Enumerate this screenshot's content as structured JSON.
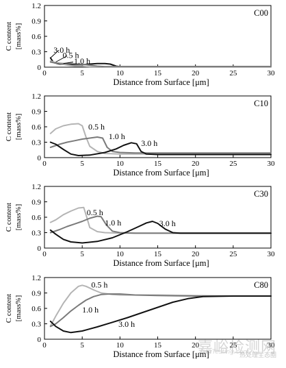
{
  "watermark": {
    "main": "嘉峪检测网",
    "url": "AnyTesting.com",
    "sub": "热处理生态圈"
  },
  "chart_data": [
    {
      "type": "line",
      "panel_label": "C00",
      "xlabel": "Distance from Surface [μm]",
      "ylabel": "C content [mass%]",
      "xlim": [
        0,
        30
      ],
      "ylim": [
        0,
        1.2
      ],
      "xticks": [
        0,
        5,
        10,
        15,
        20,
        25,
        30
      ],
      "yticks": [
        0,
        0.3,
        0.6,
        0.9,
        1.2
      ],
      "yticklabels": [
        "0",
        "0.3",
        "0.6",
        "0.9",
        "1.2"
      ],
      "series": [
        {
          "name": "3.0 h",
          "color": "#111111",
          "x": [
            0.8,
            1.2,
            2,
            3,
            4,
            5,
            6,
            7,
            8,
            8.7,
            9.5,
            10,
            12,
            15,
            20,
            25,
            30
          ],
          "y": [
            0.18,
            0.09,
            0.06,
            0.05,
            0.05,
            0.05,
            0.06,
            0.07,
            0.07,
            0.06,
            0.02,
            0.01,
            0.01,
            0.01,
            0.01,
            0.01,
            0.01
          ]
        },
        {
          "name": "0.5 h",
          "color": "#b4b4b4",
          "x": [
            0.8,
            1.2,
            2,
            3,
            4,
            5,
            6,
            8,
            10,
            15,
            20,
            25,
            30
          ],
          "y": [
            0.12,
            0.1,
            0.07,
            0.04,
            0.02,
            0.02,
            0.01,
            0.01,
            0.01,
            0.01,
            0.01,
            0.01,
            0.01
          ]
        },
        {
          "name": "1.0 h",
          "color": "#7a7a7a",
          "x": [
            0.8,
            1.5,
            2.5,
            3.5,
            4.5,
            5.5,
            6.5,
            7,
            8,
            10,
            15,
            20,
            25,
            30
          ],
          "y": [
            0.1,
            0.08,
            0.07,
            0.07,
            0.06,
            0.05,
            0.03,
            0.02,
            0.01,
            0.01,
            0.01,
            0.01,
            0.01,
            0.01
          ]
        }
      ]
    },
    {
      "type": "line",
      "panel_label": "C10",
      "xlabel": "Distance from Surface [μm]",
      "ylabel": "C content [mass%]",
      "xlim": [
        0,
        30
      ],
      "ylim": [
        0,
        1.2
      ],
      "xticks": [
        0,
        5,
        10,
        15,
        20,
        25,
        30
      ],
      "yticks": [
        0,
        0.3,
        0.6,
        0.9,
        1.2
      ],
      "yticklabels": [
        "0",
        "0.3",
        "0.6",
        "0.9",
        "1.2"
      ],
      "series": [
        {
          "name": "0.5 h",
          "color": "#b4b4b4",
          "x": [
            0.8,
            1.5,
            2.5,
            3.5,
            4.5,
            5,
            5.5,
            6,
            7,
            8,
            10,
            15,
            20,
            25,
            30
          ],
          "y": [
            0.47,
            0.56,
            0.62,
            0.65,
            0.66,
            0.62,
            0.4,
            0.22,
            0.12,
            0.08,
            0.07,
            0.07,
            0.07,
            0.07,
            0.07
          ]
        },
        {
          "name": "1.0 h",
          "color": "#7a7a7a",
          "x": [
            0.8,
            2,
            3,
            4,
            5,
            6,
            7,
            7.7,
            8.3,
            9,
            10,
            12,
            15,
            20,
            25,
            30
          ],
          "y": [
            0.2,
            0.26,
            0.3,
            0.33,
            0.36,
            0.38,
            0.4,
            0.38,
            0.2,
            0.12,
            0.1,
            0.09,
            0.09,
            0.09,
            0.09,
            0.09
          ]
        },
        {
          "name": "3.0 h",
          "color": "#111111",
          "x": [
            0.8,
            1.5,
            2.5,
            3.5,
            4.5,
            6,
            8,
            9.5,
            10.5,
            11.5,
            12.2,
            12.8,
            13.5,
            15,
            20,
            25,
            30
          ],
          "y": [
            0.3,
            0.26,
            0.16,
            0.07,
            0.04,
            0.05,
            0.1,
            0.17,
            0.24,
            0.29,
            0.27,
            0.12,
            0.07,
            0.06,
            0.06,
            0.06,
            0.06
          ]
        }
      ]
    },
    {
      "type": "line",
      "panel_label": "C30",
      "xlabel": "Distance from Surface [μm]",
      "ylabel": "C content [mass%]",
      "xlim": [
        0,
        30
      ],
      "ylim": [
        0,
        1.2
      ],
      "xticks": [
        0,
        5,
        10,
        15,
        20,
        25,
        30
      ],
      "yticks": [
        0,
        0.3,
        0.6,
        0.9,
        1.2
      ],
      "yticklabels": [
        "0",
        "0.3",
        "0.6",
        "0.9",
        "1.2"
      ],
      "series": [
        {
          "name": "0.5 h",
          "color": "#b4b4b4",
          "x": [
            0.8,
            1.5,
            2.5,
            3.5,
            4.5,
            5.2,
            5.6,
            6,
            7,
            8,
            10,
            15,
            20,
            25,
            30
          ],
          "y": [
            0.5,
            0.55,
            0.65,
            0.72,
            0.78,
            0.79,
            0.6,
            0.4,
            0.32,
            0.3,
            0.29,
            0.29,
            0.29,
            0.29,
            0.29
          ]
        },
        {
          "name": "1.0 h",
          "color": "#7a7a7a",
          "x": [
            0.8,
            2,
            3,
            4,
            5,
            6,
            7,
            7.5,
            8.2,
            9,
            10,
            12,
            15,
            20,
            25,
            30
          ],
          "y": [
            0.3,
            0.36,
            0.42,
            0.47,
            0.52,
            0.58,
            0.62,
            0.61,
            0.45,
            0.33,
            0.3,
            0.29,
            0.29,
            0.29,
            0.29,
            0.29
          ]
        },
        {
          "name": "3.0 h",
          "color": "#111111",
          "x": [
            0.8,
            1.5,
            2.5,
            3.5,
            5,
            7,
            9,
            11,
            12.5,
            13.5,
            14.3,
            15,
            16,
            17,
            18,
            20,
            25,
            30
          ],
          "y": [
            0.35,
            0.27,
            0.17,
            0.12,
            0.1,
            0.13,
            0.2,
            0.32,
            0.42,
            0.49,
            0.52,
            0.48,
            0.37,
            0.3,
            0.29,
            0.29,
            0.29,
            0.29
          ]
        }
      ]
    },
    {
      "type": "line",
      "panel_label": "C80",
      "xlabel": "Distance from Surface [μm]",
      "ylabel": "C content [mass%]",
      "xlim": [
        0,
        30
      ],
      "ylim": [
        0,
        1.2
      ],
      "xticks": [
        0,
        5,
        10,
        15,
        20,
        25,
        30
      ],
      "yticks": [
        0,
        0.3,
        0.6,
        0.9,
        1.2
      ],
      "yticklabels": [
        "0",
        "0.3",
        "0.6",
        "0.9",
        "1.2"
      ],
      "series": [
        {
          "name": "0.5 h",
          "color": "#b4b4b4",
          "x": [
            0.8,
            1.5,
            2.5,
            3.5,
            4.5,
            5,
            5.5,
            6.5,
            7.5,
            9,
            10,
            12,
            15,
            20,
            25,
            30
          ],
          "y": [
            0.26,
            0.45,
            0.7,
            0.9,
            1.03,
            1.05,
            1.03,
            0.96,
            0.9,
            0.87,
            0.86,
            0.86,
            0.86,
            0.85,
            0.84,
            0.84
          ]
        },
        {
          "name": "1.0 h",
          "color": "#7a7a7a",
          "x": [
            0.8,
            1.5,
            2.5,
            3.5,
            4.5,
            5.5,
            6.5,
            7.5,
            8.5,
            10,
            12,
            15,
            20,
            25,
            30
          ],
          "y": [
            0.25,
            0.3,
            0.42,
            0.55,
            0.66,
            0.76,
            0.83,
            0.87,
            0.88,
            0.88,
            0.86,
            0.85,
            0.84,
            0.84,
            0.84
          ]
        },
        {
          "name": "3.0 h",
          "color": "#111111",
          "x": [
            0.8,
            1.5,
            2.5,
            3.5,
            5,
            7,
            9,
            11,
            13,
            15,
            17,
            19,
            21,
            25,
            30
          ],
          "y": [
            0.35,
            0.25,
            0.16,
            0.13,
            0.16,
            0.24,
            0.33,
            0.42,
            0.52,
            0.62,
            0.72,
            0.79,
            0.83,
            0.84,
            0.84
          ]
        }
      ]
    }
  ]
}
